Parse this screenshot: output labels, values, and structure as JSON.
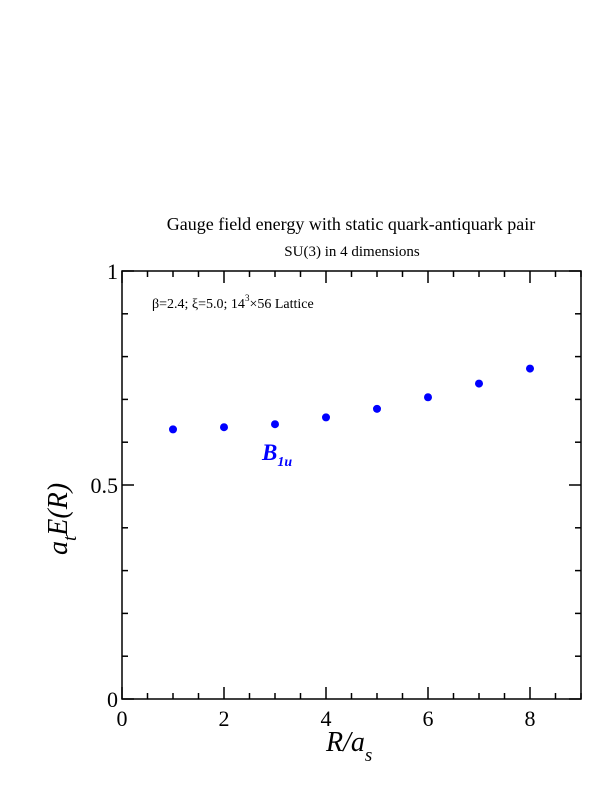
{
  "chart_data": {
    "type": "scatter",
    "title": "Gauge field energy with static quark-antiquark pair",
    "subtitle": "SU(3) in 4 dimensions",
    "annotation": {
      "parts": [
        "β=2.4;  ξ=5.0;  14",
        "3",
        "×56 Lattice"
      ]
    },
    "xlabel": {
      "main": "R/a",
      "sub": "s"
    },
    "ylabel": {
      "pre": "a",
      "sub": "t",
      "post": "E(R)"
    },
    "xlim": [
      0,
      9
    ],
    "ylim": [
      0,
      1
    ],
    "x_ticks": [
      0,
      2,
      4,
      6,
      8
    ],
    "x_tick_labels": [
      "0",
      "2",
      "4",
      "6",
      "8"
    ],
    "y_ticks": [
      0,
      0.5,
      1
    ],
    "y_tick_labels": [
      "0",
      "0.5",
      "1"
    ],
    "x_minor_step": 0.5,
    "y_minor_step": 0.1,
    "grid": false,
    "series": [
      {
        "name": {
          "main": "B",
          "sub": "1u"
        },
        "color": "#0000ff",
        "x": [
          1,
          2,
          3,
          4,
          5,
          6,
          7,
          8
        ],
        "y": [
          0.63,
          0.635,
          0.642,
          0.658,
          0.678,
          0.705,
          0.737,
          0.772
        ]
      }
    ]
  }
}
